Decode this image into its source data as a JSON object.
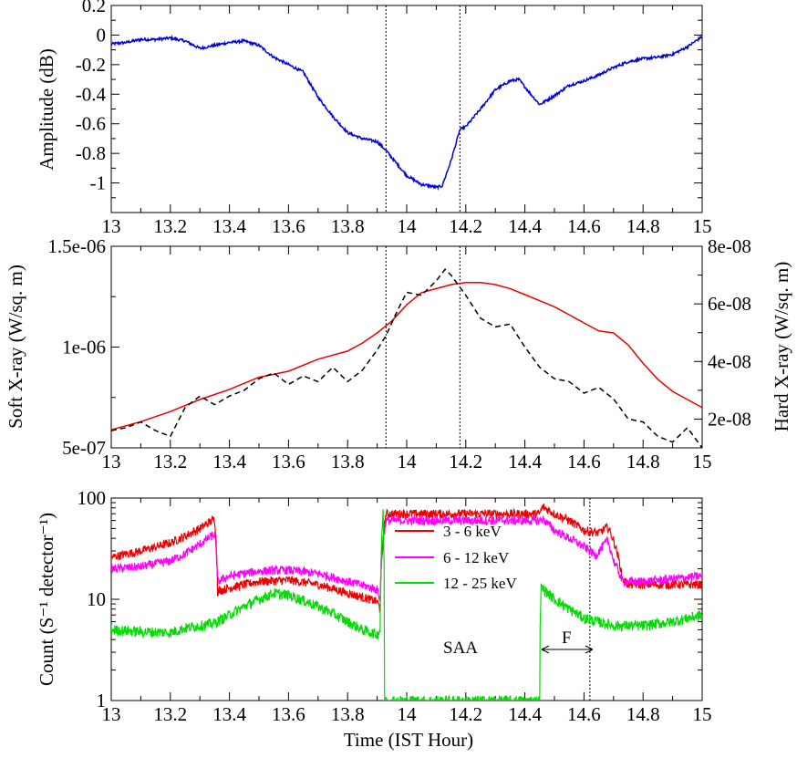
{
  "chart_data": [
    {
      "type": "line",
      "panel": "top",
      "ylabel": "Amplitude (dB)",
      "xlim": [
        13,
        15
      ],
      "ylim": [
        -1.2,
        0.2
      ],
      "xticks": [
        "13",
        "13.2",
        "13.4",
        "13.6",
        "13.8",
        "14",
        "14.2",
        "14.4",
        "14.6",
        "14.8",
        "15"
      ],
      "yticks": [
        "0.2",
        "0",
        "-0.2",
        "-0.4",
        "-0.6",
        "-0.8",
        "-1"
      ],
      "vlines": [
        13.93,
        14.18
      ],
      "series": [
        {
          "color": "#0000dd",
          "x": [
            13.0,
            13.05,
            13.1,
            13.15,
            13.2,
            13.25,
            13.3,
            13.35,
            13.4,
            13.45,
            13.5,
            13.55,
            13.6,
            13.65,
            13.7,
            13.75,
            13.8,
            13.85,
            13.9,
            13.93,
            13.95,
            14.0,
            14.05,
            14.08,
            14.1,
            14.12,
            14.15,
            14.18,
            14.2,
            14.25,
            14.3,
            14.35,
            14.38,
            14.42,
            14.45,
            14.5,
            14.55,
            14.6,
            14.65,
            14.7,
            14.75,
            14.8,
            14.85,
            14.9,
            14.95,
            15.0
          ],
          "y": [
            -0.06,
            -0.05,
            -0.03,
            -0.03,
            -0.02,
            -0.04,
            -0.09,
            -0.07,
            -0.05,
            -0.04,
            -0.07,
            -0.15,
            -0.2,
            -0.25,
            -0.42,
            -0.55,
            -0.66,
            -0.7,
            -0.72,
            -0.78,
            -0.83,
            -0.95,
            -1.01,
            -1.02,
            -1.03,
            -1.02,
            -0.85,
            -0.64,
            -0.62,
            -0.5,
            -0.37,
            -0.31,
            -0.3,
            -0.4,
            -0.47,
            -0.41,
            -0.34,
            -0.31,
            -0.27,
            -0.22,
            -0.18,
            -0.16,
            -0.15,
            -0.13,
            -0.08,
            -0.01
          ]
        }
      ]
    },
    {
      "type": "line",
      "panel": "middle",
      "ylabel": "Soft X-ray (W/sq. m)",
      "y2label": "Hard X-ray (W/sq. m)",
      "xlim": [
        13,
        15
      ],
      "ylim": [
        5e-07,
        1.5e-06
      ],
      "y2lim": [
        1e-08,
        8e-08
      ],
      "xticks": [
        "13",
        "13.2",
        "13.4",
        "13.6",
        "13.8",
        "14",
        "14.2",
        "14.4",
        "14.6",
        "14.8",
        "15"
      ],
      "yticks": [
        "1.5e-06",
        "1e-06",
        "5e-07"
      ],
      "y2ticks": [
        "8e-08",
        "6e-08",
        "4e-08",
        "2e-08"
      ],
      "vlines": [
        13.93,
        14.18
      ],
      "series": [
        {
          "axis": "left",
          "color": "#ee0000",
          "dash": "solid",
          "x": [
            13.0,
            13.1,
            13.2,
            13.3,
            13.4,
            13.5,
            13.6,
            13.7,
            13.8,
            13.85,
            13.9,
            13.95,
            14.0,
            14.05,
            14.1,
            14.15,
            14.2,
            14.25,
            14.3,
            14.35,
            14.4,
            14.45,
            14.5,
            14.55,
            14.6,
            14.65,
            14.7,
            14.75,
            14.8,
            14.85,
            14.9,
            14.95,
            15.0
          ],
          "y": [
            5.9e-07,
            6.3e-07,
            6.8e-07,
            7.4e-07,
            7.9e-07,
            8.5e-07,
            8.8e-07,
            9.4e-07,
            9.8e-07,
            1.02e-06,
            1.07e-06,
            1.13e-06,
            1.21e-06,
            1.27e-06,
            1.29e-06,
            1.31e-06,
            1.32e-06,
            1.32e-06,
            1.31e-06,
            1.29e-06,
            1.26e-06,
            1.23e-06,
            1.2e-06,
            1.16e-06,
            1.12e-06,
            1.08e-06,
            1.07e-06,
            1.01e-06,
            9.2e-07,
            8.4e-07,
            7.8e-07,
            7.4e-07,
            7e-07
          ]
        },
        {
          "axis": "right",
          "color": "#000000",
          "dash": "dashed",
          "x": [
            13.0,
            13.05,
            13.1,
            13.15,
            13.2,
            13.25,
            13.3,
            13.35,
            13.4,
            13.45,
            13.5,
            13.55,
            13.6,
            13.65,
            13.7,
            13.75,
            13.8,
            13.85,
            13.9,
            13.93,
            13.97,
            14.0,
            14.05,
            14.1,
            14.13,
            14.15,
            14.2,
            14.25,
            14.3,
            14.35,
            14.4,
            14.45,
            14.5,
            14.55,
            14.6,
            14.65,
            14.7,
            14.75,
            14.8,
            14.85,
            14.9,
            14.95,
            15.0
          ],
          "y": [
            1.6e-08,
            1.7e-08,
            1.9e-08,
            1.6e-08,
            1.4e-08,
            2.4e-08,
            2.8e-08,
            2.5e-08,
            2.8e-08,
            3e-08,
            3.4e-08,
            3.6e-08,
            3.2e-08,
            3.5e-08,
            3.3e-08,
            3.8e-08,
            3.3e-08,
            3.7e-08,
            4.4e-08,
            4.9e-08,
            5.8e-08,
            6.4e-08,
            6.3e-08,
            6.8e-08,
            7.2e-08,
            7e-08,
            6.3e-08,
            5.5e-08,
            5.2e-08,
            5.3e-08,
            4.5e-08,
            3.8e-08,
            3.4e-08,
            3.3e-08,
            2.9e-08,
            3.1e-08,
            2.7e-08,
            2e-08,
            1.9e-08,
            1.4e-08,
            1.2e-08,
            1.7e-08,
            1e-08
          ]
        }
      ]
    },
    {
      "type": "line",
      "panel": "bottom",
      "xlabel": "Time (IST Hour)",
      "ylabel": "Count (S⁻¹ detector⁻¹)",
      "yscale": "log",
      "xlim": [
        13,
        15
      ],
      "ylim": [
        1,
        100
      ],
      "xticks": [
        "13",
        "13.2",
        "13.4",
        "13.6",
        "13.8",
        "14",
        "14.2",
        "14.4",
        "14.6",
        "14.8",
        "15"
      ],
      "yticks": [
        "100",
        "10",
        "1"
      ],
      "vlines": [
        14.62
      ],
      "legend_position": "top-center",
      "series": [
        {
          "name": "3 - 6 keV",
          "color": "#ee0000",
          "x": [
            13.0,
            13.1,
            13.2,
            13.25,
            13.3,
            13.35,
            13.36,
            13.4,
            13.5,
            13.6,
            13.7,
            13.8,
            13.9,
            13.91,
            13.92,
            13.93,
            14.45,
            14.46,
            14.5,
            14.55,
            14.6,
            14.65,
            14.68,
            14.7,
            14.73,
            14.75,
            14.8,
            14.9,
            15.0
          ],
          "y": [
            26,
            30,
            36,
            42,
            50,
            62,
            12,
            13,
            15,
            15.5,
            14,
            11.5,
            9.5,
            8,
            40,
            70,
            70,
            82,
            70,
            60,
            48,
            45,
            52,
            38,
            16,
            14,
            14,
            14,
            14
          ],
          "noise": 0.1
        },
        {
          "name": "6 - 12 keV",
          "color": "#ff00ff",
          "x": [
            13.0,
            13.1,
            13.2,
            13.25,
            13.3,
            13.35,
            13.36,
            13.4,
            13.5,
            13.6,
            13.7,
            13.8,
            13.9,
            13.91,
            13.93,
            14.45,
            14.46,
            14.5,
            14.55,
            14.6,
            14.64,
            14.68,
            14.7,
            14.73,
            14.75,
            14.8,
            14.9,
            15.0
          ],
          "y": [
            20,
            21,
            24,
            28,
            35,
            44,
            15,
            17,
            19,
            19.5,
            18,
            15,
            12.5,
            10,
            60,
            60,
            62,
            48,
            40,
            33,
            27,
            38,
            24,
            15,
            15,
            15,
            16,
            17
          ],
          "noise": 0.1
        },
        {
          "name": "12 - 25 keV",
          "color": "#00dd00",
          "x": [
            13.0,
            13.1,
            13.2,
            13.25,
            13.3,
            13.35,
            13.4,
            13.5,
            13.55,
            13.6,
            13.7,
            13.8,
            13.85,
            13.9,
            13.91,
            13.92,
            13.925,
            14.45,
            14.455,
            14.5,
            14.55,
            14.6,
            14.65,
            14.7,
            14.8,
            14.9,
            15.0
          ],
          "y": [
            5,
            4.8,
            4.7,
            5.2,
            5.5,
            5.8,
            7,
            10,
            11.5,
            11,
            8.5,
            6,
            5,
            4.5,
            5,
            70,
            1,
            1,
            13,
            10,
            8,
            6.5,
            6,
            5.5,
            5.5,
            6,
            7
          ],
          "noise": 0.12
        }
      ],
      "annotations": [
        "SAA",
        "F"
      ]
    }
  ]
}
